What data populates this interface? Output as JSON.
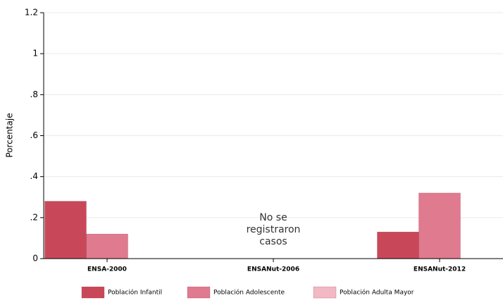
{
  "chart_data": {
    "type": "bar",
    "y_label": "Porcentaje",
    "categories": [
      "ENSA-2000",
      "ENSANut-2006",
      "ENSANut-2012"
    ],
    "series": [
      {
        "name": "Población Infantil",
        "color": "#c8485a",
        "values": [
          0.28,
          null,
          0.13
        ]
      },
      {
        "name": "Población Adolescente",
        "color": "#e07a8e",
        "values": [
          0.12,
          null,
          0.32
        ]
      },
      {
        "name": "Población Adulta Mayor",
        "color": "#f2b8c4",
        "values": [
          null,
          null,
          null
        ]
      }
    ],
    "annotation": [
      "No se",
      "registraron",
      "casos"
    ],
    "ylim": [
      0,
      1.2
    ],
    "yticks": [
      0,
      {
        "value": 0.2,
        "label": ".2"
      },
      {
        "value": 0.4,
        "label": ".4"
      },
      {
        "value": 0.6,
        "label": ".6"
      },
      {
        "value": 0.8,
        "label": ".8"
      },
      1,
      1.2
    ],
    "grid": true,
    "legend": "bottom"
  }
}
